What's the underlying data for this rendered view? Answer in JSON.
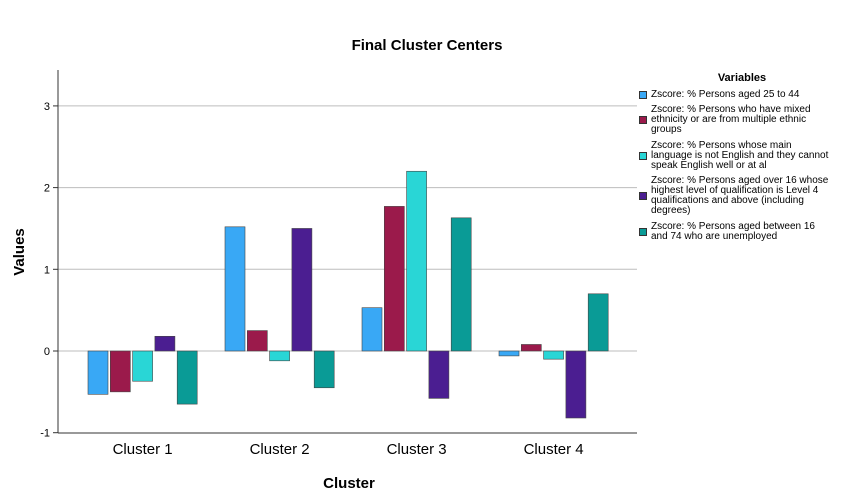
{
  "chart_data": {
    "type": "bar",
    "title": "Final Cluster Centers",
    "xlabel": "Cluster",
    "ylabel": "Values",
    "ylim": [
      -1,
      3.45
    ],
    "yticks": [
      "-1",
      "0",
      "1",
      "2",
      "3"
    ],
    "grid": true,
    "legend_title": "Variables",
    "legend_position": "right",
    "categories": [
      "Cluster 1",
      "Cluster 2",
      "Cluster 3",
      "Cluster 4"
    ],
    "series": [
      {
        "name": "Zscore: % Persons aged 25 to 44",
        "color": "#39a8f5",
        "values": [
          -0.53,
          1.52,
          0.53,
          -0.06
        ]
      },
      {
        "name": "Zscore: % Persons who have mixed ethnicity or are from multiple ethnic groups",
        "color": "#9b1a4b",
        "values": [
          -0.5,
          0.25,
          1.77,
          0.08
        ]
      },
      {
        "name": "Zscore: % Persons whose main language is not English and they cannot speak English well or at al",
        "color": "#29d6d6",
        "values": [
          -0.37,
          -0.12,
          2.2,
          -0.1
        ]
      },
      {
        "name": "Zscore: % Persons aged over 16 whose highest level of qualification is Level 4 qualifications and above (including degrees)",
        "color": "#4b1e91",
        "values": [
          0.18,
          1.5,
          -0.58,
          -0.82
        ]
      },
      {
        "name": "Zscore: % Persons aged between 16 and 74 who are unemployed",
        "color": "#0a9b96",
        "values": [
          -0.65,
          -0.45,
          1.63,
          0.7
        ]
      }
    ]
  }
}
